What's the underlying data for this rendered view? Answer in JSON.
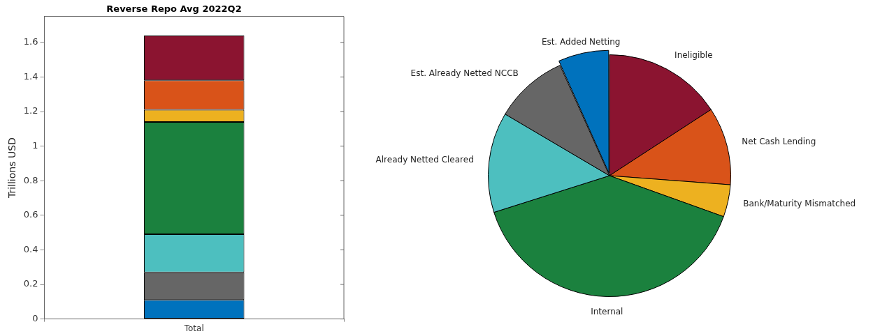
{
  "chart_data": [
    {
      "type": "bar",
      "title": "Reverse Repo Avg 2022Q2",
      "ylabel": "Trillions USD",
      "categories": [
        "Total"
      ],
      "stacked": true,
      "series": [
        {
          "color": "#0072bd",
          "values": [
            0.11
          ]
        },
        {
          "color": "#666666",
          "values": [
            0.16
          ]
        },
        {
          "color": "#4dbfbf",
          "values": [
            0.22
          ]
        },
        {
          "color": "#1b813e",
          "values": [
            0.65
          ]
        },
        {
          "color": "#edb120",
          "values": [
            0.07
          ]
        },
        {
          "color": "#d95319",
          "values": [
            0.17
          ]
        },
        {
          "color": "#8b1430",
          "values": [
            0.26
          ]
        }
      ],
      "ylim": [
        0,
        1.75
      ],
      "yticks": [
        0,
        0.2,
        0.4,
        0.6,
        0.8,
        1,
        1.2,
        1.4,
        1.6
      ],
      "grid": false,
      "legend": false
    },
    {
      "type": "pie",
      "categories": [
        "Ineligible",
        "Net Cash Lending",
        "Bank/Maturity Mismatched",
        "Internal",
        "Already Netted Cleared",
        "Est. Already Netted NCCB",
        "Est. Added Netting"
      ],
      "values": [
        15.8,
        10.4,
        4.3,
        39.6,
        13.4,
        9.8,
        6.7
      ],
      "colors": [
        "#8b1430",
        "#d95319",
        "#edb120",
        "#1b813e",
        "#4dbfbf",
        "#666666",
        "#0072bd"
      ],
      "legend": false
    }
  ]
}
